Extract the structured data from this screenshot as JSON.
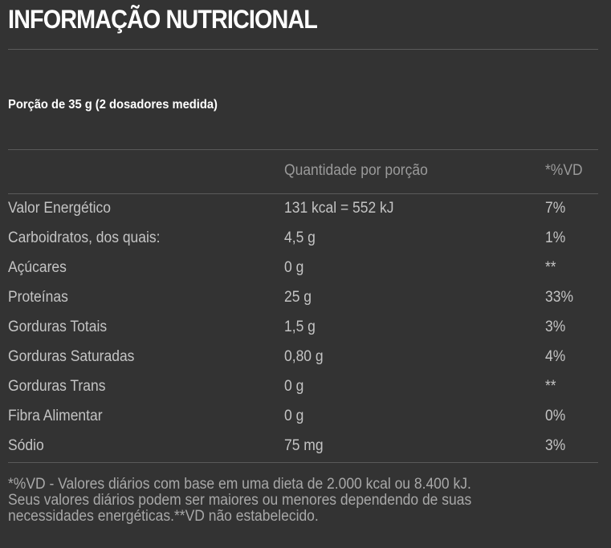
{
  "title": "INFORMAÇÃO NUTRICIONAL",
  "serving": "Porção de 35 g (2 dosadores medida)",
  "table": {
    "headers": {
      "nutrient": "",
      "quantity": "Quantidade por porção",
      "dv": "*%VD"
    },
    "rows": [
      {
        "nutrient": "Valor Energético",
        "quantity": "131 kcal = 552 kJ",
        "dv": "7%"
      },
      {
        "nutrient": "Carboidratos, dos quais:",
        "quantity": "4,5 g",
        "dv": "1%"
      },
      {
        "nutrient": "Açúcares",
        "quantity": "0 g",
        "dv": "**"
      },
      {
        "nutrient": "Proteínas",
        "quantity": "25 g",
        "dv": "33%"
      },
      {
        "nutrient": "Gorduras Totais",
        "quantity": "1,5 g",
        "dv": "3%"
      },
      {
        "nutrient": "Gorduras Saturadas",
        "quantity": "0,80 g",
        "dv": "4%"
      },
      {
        "nutrient": "Gorduras Trans",
        "quantity": "0 g",
        "dv": "**"
      },
      {
        "nutrient": "Fibra Alimentar",
        "quantity": "0 g",
        "dv": "0%"
      },
      {
        "nutrient": "Sódio",
        "quantity": "75 mg",
        "dv": "3%"
      }
    ]
  },
  "footnote": {
    "line1": "*%VD - Valores diários com base em uma dieta de 2.000 kcal ou 8.400 kJ.",
    "line2": "Seus valores diários podem ser maiores ou menores dependendo de suas",
    "line3": "necessidades energéticas.**VD não estabelecido."
  }
}
